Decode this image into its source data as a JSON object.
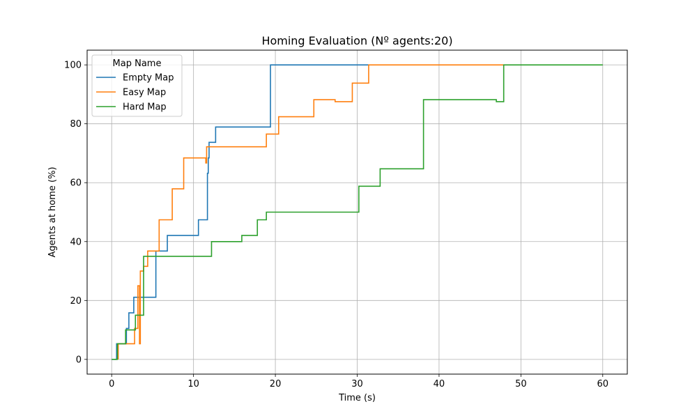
{
  "chart_data": {
    "type": "line",
    "step": true,
    "title": "Homing Evaluation (Nº agents:20)",
    "xlabel": "Time (s)",
    "ylabel": "Agents at home (%)",
    "xlim": [
      -3,
      63
    ],
    "ylim": [
      -5,
      105
    ],
    "xticks": [
      0,
      10,
      20,
      30,
      40,
      50,
      60
    ],
    "yticks": [
      0,
      20,
      40,
      60,
      80,
      100
    ],
    "grid": true,
    "legend": {
      "title": "Map Name",
      "position": "top-left"
    },
    "series": [
      {
        "name": "Empty Map",
        "color": "#1f77b4",
        "points": [
          [
            0,
            0
          ],
          [
            0.6,
            0
          ],
          [
            0.6,
            5.3
          ],
          [
            1.8,
            5.3
          ],
          [
            1.8,
            10.5
          ],
          [
            2.1,
            10.5
          ],
          [
            2.1,
            15.8
          ],
          [
            2.7,
            15.8
          ],
          [
            2.7,
            21.1
          ],
          [
            5.4,
            21.1
          ],
          [
            5.4,
            36.8
          ],
          [
            6.8,
            36.8
          ],
          [
            6.8,
            42.1
          ],
          [
            10.6,
            42.1
          ],
          [
            10.6,
            47.4
          ],
          [
            11.7,
            47.4
          ],
          [
            11.7,
            63.2
          ],
          [
            11.8,
            63.2
          ],
          [
            11.8,
            68.4
          ],
          [
            11.9,
            68.4
          ],
          [
            11.9,
            73.7
          ],
          [
            12.7,
            73.7
          ],
          [
            12.7,
            78.9
          ],
          [
            19.4,
            78.9
          ],
          [
            19.4,
            100
          ],
          [
            31.4,
            100
          ]
        ]
      },
      {
        "name": "Easy Map",
        "color": "#ff7f0e",
        "points": [
          [
            0.8,
            0
          ],
          [
            0.8,
            5.3
          ],
          [
            2.8,
            5.3
          ],
          [
            2.8,
            10.5
          ],
          [
            3.2,
            10.5
          ],
          [
            3.2,
            25.0
          ],
          [
            3.4,
            25.0
          ],
          [
            3.4,
            5.3
          ],
          [
            3.5,
            5.3
          ],
          [
            3.5,
            30.0
          ],
          [
            3.9,
            30.0
          ],
          [
            3.9,
            31.6
          ],
          [
            4.4,
            31.6
          ],
          [
            4.4,
            36.8
          ],
          [
            5.8,
            36.8
          ],
          [
            5.8,
            47.4
          ],
          [
            7.4,
            47.4
          ],
          [
            7.4,
            57.9
          ],
          [
            8.8,
            57.9
          ],
          [
            8.8,
            68.4
          ],
          [
            11.5,
            68.4
          ],
          [
            11.5,
            66.7
          ],
          [
            11.6,
            66.7
          ],
          [
            11.6,
            72.2
          ],
          [
            18.9,
            72.2
          ],
          [
            18.9,
            76.5
          ],
          [
            20.4,
            76.5
          ],
          [
            20.4,
            82.4
          ],
          [
            24.7,
            82.4
          ],
          [
            24.7,
            88.2
          ],
          [
            27.3,
            88.2
          ],
          [
            27.3,
            87.5
          ],
          [
            29.4,
            87.5
          ],
          [
            29.4,
            93.8
          ],
          [
            31.4,
            93.8
          ],
          [
            31.4,
            100
          ],
          [
            47.9,
            100
          ]
        ]
      },
      {
        "name": "Hard Map",
        "color": "#2ca02c",
        "points": [
          [
            0,
            0
          ],
          [
            0.7,
            0
          ],
          [
            0.7,
            5.3
          ],
          [
            1.7,
            5.3
          ],
          [
            1.7,
            10.0
          ],
          [
            2.9,
            10.0
          ],
          [
            2.9,
            15.0
          ],
          [
            3.9,
            15.0
          ],
          [
            3.9,
            35.0
          ],
          [
            12.2,
            35.0
          ],
          [
            12.2,
            40.0
          ],
          [
            15.9,
            40.0
          ],
          [
            15.9,
            42.1
          ],
          [
            17.8,
            42.1
          ],
          [
            17.8,
            47.4
          ],
          [
            18.9,
            47.4
          ],
          [
            18.9,
            50.0
          ],
          [
            30.2,
            50.0
          ],
          [
            30.2,
            58.8
          ],
          [
            32.8,
            58.8
          ],
          [
            32.8,
            64.7
          ],
          [
            38.1,
            64.7
          ],
          [
            38.1,
            88.2
          ],
          [
            47.0,
            88.2
          ],
          [
            47.0,
            87.5
          ],
          [
            47.9,
            87.5
          ],
          [
            47.9,
            100
          ],
          [
            60,
            100
          ]
        ]
      }
    ]
  }
}
